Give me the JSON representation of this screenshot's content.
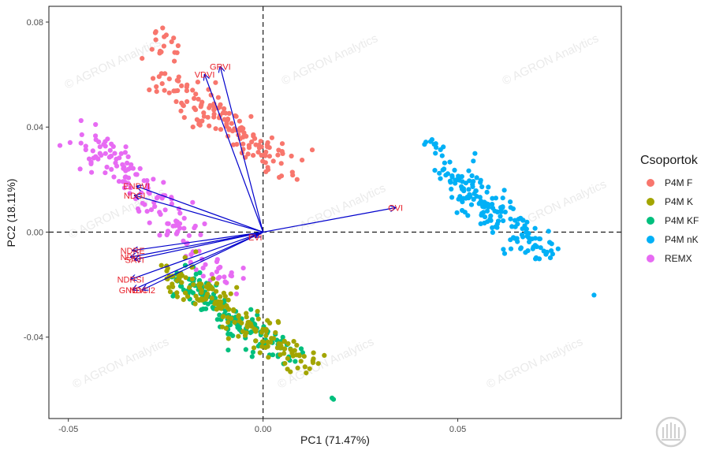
{
  "chart_data": {
    "type": "scatter",
    "subtype": "pca-biplot",
    "xlabel": "PC1 (71.47%)",
    "ylabel": "PC2 (18.11%)",
    "xlim": [
      -0.055,
      0.092
    ],
    "ylim": [
      -0.071,
      0.086
    ],
    "xticks": [
      -0.05,
      0.0,
      0.05
    ],
    "xtick_labels": [
      "-0.05",
      "0.00",
      "0.05"
    ],
    "yticks": [
      -0.04,
      0.0,
      0.04,
      0.08
    ],
    "ytick_labels": [
      "-0.04",
      "0.00",
      "0.04",
      "0.08"
    ],
    "grid": false,
    "reference_lines": {
      "x": 0,
      "y": 0,
      "style": "dashed"
    },
    "legend": {
      "title": "Csoportok",
      "placement": "right"
    },
    "series": [
      {
        "name": "P4M F",
        "color": "#F8766D",
        "clusters": [
          {
            "n": 150,
            "x": [
              -0.026,
              0.008
            ],
            "y": [
              0.059,
              0.021
            ],
            "spread": 0.0045
          },
          {
            "n": 16,
            "x": [
              -0.026,
              -0.024
            ],
            "y": [
              0.078,
              0.066
            ],
            "spread": 0.003
          }
        ]
      },
      {
        "name": "P4M K",
        "color": "#A3A500",
        "clusters": [
          {
            "n": 170,
            "x": [
              -0.022,
              0.012
            ],
            "y": [
              -0.016,
              -0.051
            ],
            "spread": 0.0035
          }
        ]
      },
      {
        "name": "P4M KF",
        "color": "#00BF7D",
        "clusters": [
          {
            "n": 160,
            "x": [
              -0.022,
              0.006
            ],
            "y": [
              -0.016,
              -0.049
            ],
            "spread": 0.0035
          },
          {
            "n": 2,
            "x": [
              0.018,
              0.018
            ],
            "y": [
              -0.0635,
              -0.0635
            ],
            "spread": 0.0003
          }
        ]
      },
      {
        "name": "P4M nK",
        "color": "#00B0F6",
        "clusters": [
          {
            "n": 170,
            "x": [
              0.047,
              0.072
            ],
            "y": [
              0.024,
              -0.009
            ],
            "spread": 0.004
          },
          {
            "n": 10,
            "x": [
              0.042,
              0.046
            ],
            "y": [
              0.036,
              0.031
            ],
            "spread": 0.0015
          },
          {
            "n": 1,
            "x": [
              0.085,
              0.085
            ],
            "y": [
              -0.024,
              -0.024
            ],
            "spread": 0.0
          }
        ]
      },
      {
        "name": "REMX",
        "color": "#E76BF3",
        "clusters": [
          {
            "n": 130,
            "x": [
              -0.045,
              -0.018
            ],
            "y": [
              0.036,
              -0.002
            ],
            "spread": 0.0045
          },
          {
            "n": 30,
            "x": [
              -0.018,
              -0.006
            ],
            "y": [
              -0.006,
              -0.022
            ],
            "spread": 0.003
          }
        ]
      }
    ],
    "loadings": [
      {
        "label": "GRVI",
        "x": -0.011,
        "y": 0.063
      },
      {
        "label": "VDVI",
        "x": -0.015,
        "y": 0.06
      },
      {
        "label": "GVI",
        "x": 0.034,
        "y": 0.0093
      },
      {
        "label": "ENDVI",
        "x": -0.0325,
        "y": 0.0175
      },
      {
        "label": "NDGI",
        "x": -0.033,
        "y": 0.014
      },
      {
        "label": "NDRE",
        "x": -0.0335,
        "y": -0.007
      },
      {
        "label": "NDVI",
        "x": -0.034,
        "y": -0.0095
      },
      {
        "label": "SAVI",
        "x": -0.033,
        "y": -0.0105
      },
      {
        "label": "NDRSI",
        "x": -0.034,
        "y": -0.018
      },
      {
        "label": "GNDVI",
        "x": -0.0335,
        "y": -0.022
      },
      {
        "label": "NDCI2",
        "x": -0.031,
        "y": -0.022
      },
      {
        "label": "EVI",
        "x": -0.002,
        "y": -0.002
      }
    ]
  },
  "watermark": "© AGRON Analytics",
  "logo": "agron-logo-icon"
}
